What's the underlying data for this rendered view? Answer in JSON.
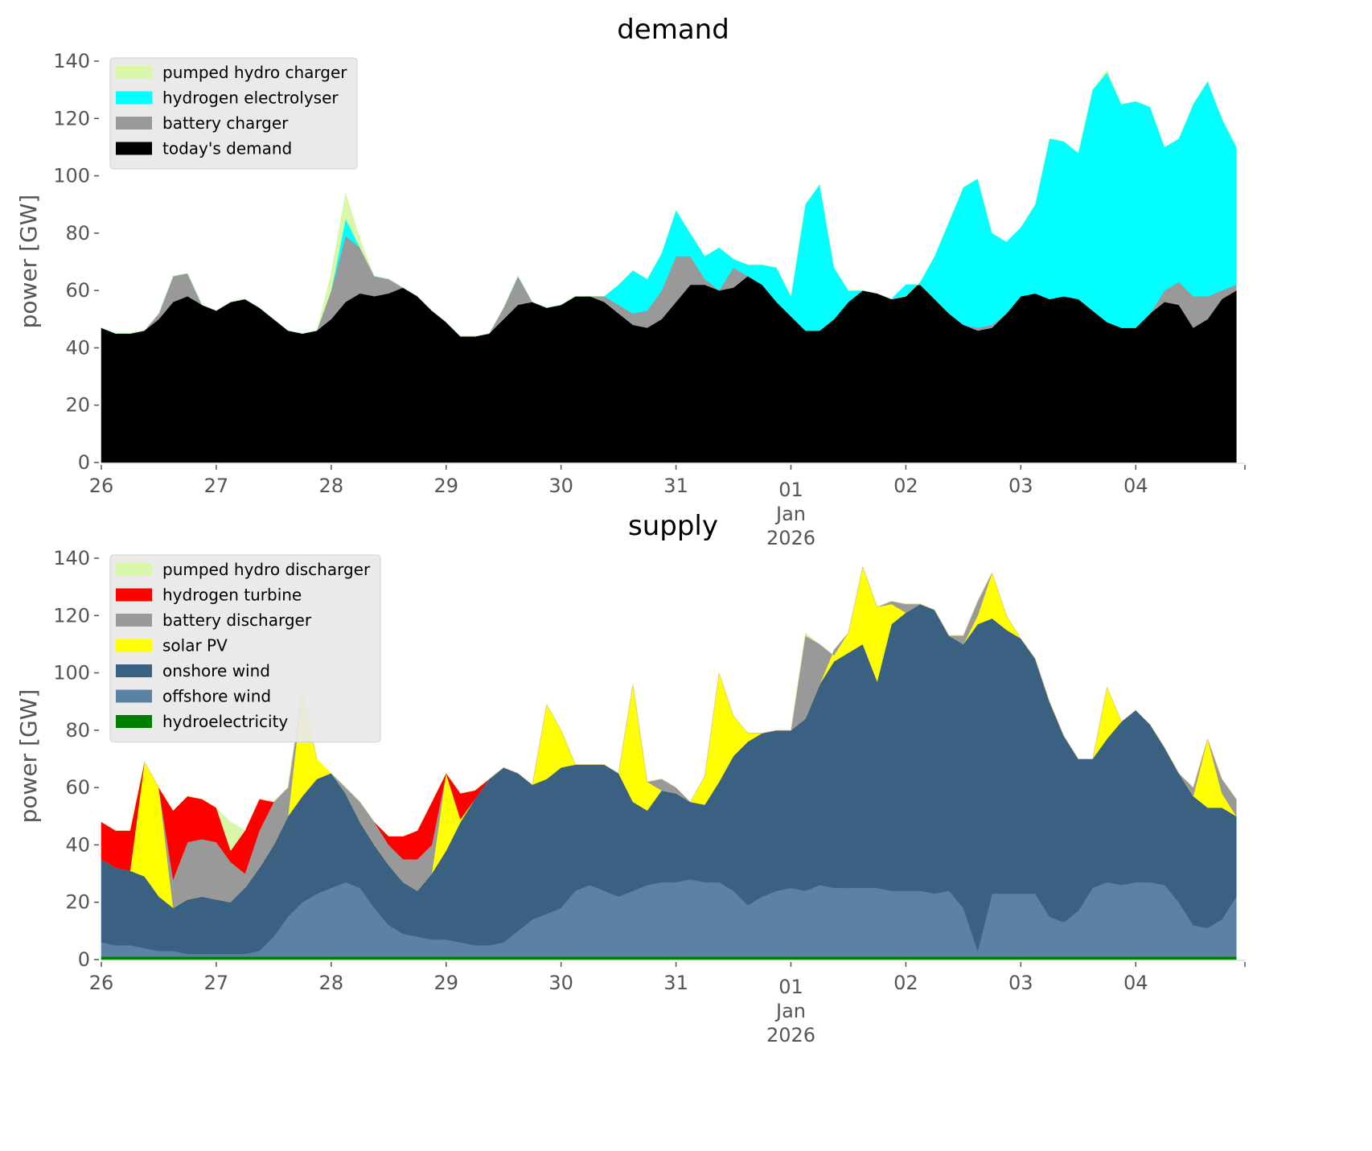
{
  "chart_data": [
    {
      "type": "area",
      "stacked": true,
      "title": "demand",
      "xlabel": "",
      "ylabel": "power [GW]",
      "ylim": [
        0,
        140
      ],
      "yticks": [
        0,
        20,
        40,
        60,
        80,
        100,
        120,
        140
      ],
      "xlim_days": [
        0,
        9.95
      ],
      "x_tick_labels": [
        "26",
        "27",
        "28",
        "29",
        "30",
        "31",
        "01\nJan\n2026",
        "02",
        "03",
        "04"
      ],
      "x_step_days": 0.125,
      "legend_position": "top-left",
      "series_order_bottom_to_top": [
        "today's demand",
        "battery charger",
        "hydrogen electrolyser",
        "pumped hydro charger"
      ],
      "legend": [
        "pumped hydro charger",
        "hydrogen electrolyser",
        "battery charger",
        "today's demand"
      ],
      "colors": {
        "pumped hydro charger": "#d9f7a8",
        "hydrogen electrolyser": "#00ffff",
        "battery charger": "#999999",
        "today's demand": "#000000"
      },
      "cumulative_tops": {
        "today's demand": [
          47,
          45,
          45,
          46,
          50,
          56,
          58,
          55,
          53,
          56,
          57,
          54,
          50,
          46,
          45,
          46,
          50,
          56,
          59,
          58,
          59,
          61,
          58,
          53,
          49,
          44,
          44,
          45,
          50,
          55,
          56,
          54,
          55,
          58,
          58,
          56,
          52,
          48,
          47,
          50,
          56,
          62,
          62,
          60,
          61,
          65,
          62,
          56,
          51,
          46,
          46,
          50,
          56,
          60,
          59,
          57,
          61,
          62,
          57,
          52,
          48,
          46,
          47,
          52,
          58,
          59,
          57,
          58,
          57,
          53,
          49,
          47,
          47,
          52,
          56,
          55,
          47,
          50,
          57,
          60
        ],
        "battery charger": [
          47,
          45,
          45,
          46,
          52,
          65,
          66,
          55,
          53,
          56,
          57,
          54,
          50,
          46,
          45,
          46,
          60,
          79,
          75,
          65,
          64,
          61,
          58,
          53,
          49,
          44,
          44,
          45,
          54,
          65,
          56,
          54,
          55,
          58,
          58,
          58,
          55,
          52,
          53,
          60,
          72,
          72,
          64,
          60,
          68,
          65,
          62,
          56,
          51,
          46,
          46,
          50,
          56,
          60,
          59,
          57,
          62,
          62,
          57,
          52,
          48,
          47,
          48,
          52,
          58,
          59,
          57,
          58,
          57,
          53,
          49,
          47,
          47,
          52,
          60,
          63,
          58,
          58,
          60,
          62
        ],
        "hydrogen electrolyser": [
          47,
          45,
          45,
          46,
          52,
          65,
          66,
          55,
          53,
          56,
          57,
          54,
          50,
          46,
          45,
          46,
          60,
          85,
          75,
          65,
          64,
          61,
          58,
          53,
          49,
          44,
          44,
          45,
          54,
          65,
          56,
          54,
          55,
          58,
          58,
          58,
          62,
          67,
          64,
          73,
          88,
          80,
          72,
          75,
          71,
          69,
          69,
          68,
          58,
          90,
          97,
          68,
          60,
          60,
          59,
          57,
          58,
          63,
          72,
          84,
          96,
          99,
          80,
          77,
          82,
          90,
          113,
          112,
          108,
          130,
          136,
          125,
          126,
          124,
          110,
          113,
          125,
          133,
          120,
          110
        ],
        "pumped hydro charger": [
          47,
          45,
          45,
          46,
          52,
          65,
          66,
          55,
          53,
          56,
          57,
          54,
          50,
          46,
          45,
          46,
          66,
          94,
          78,
          65,
          64,
          61,
          58,
          53,
          49,
          44,
          44,
          45,
          54,
          65,
          56,
          54,
          55,
          58,
          58,
          58,
          62,
          67,
          64,
          73,
          88,
          80,
          72,
          75,
          71,
          69,
          69,
          68,
          58,
          90,
          97,
          68,
          60,
          60,
          59,
          57,
          58,
          63,
          72,
          84,
          96,
          99,
          80,
          77,
          82,
          90,
          113,
          112,
          108,
          130,
          137,
          125,
          126,
          124,
          110,
          113,
          125,
          133,
          120,
          110
        ]
      }
    },
    {
      "type": "area",
      "stacked": true,
      "title": "supply",
      "xlabel": "",
      "ylabel": "power [GW]",
      "ylim": [
        0,
        140
      ],
      "yticks": [
        0,
        20,
        40,
        60,
        80,
        100,
        120,
        140
      ],
      "xlim_days": [
        0,
        9.95
      ],
      "x_tick_labels": [
        "26",
        "27",
        "28",
        "29",
        "30",
        "31",
        "01\nJan\n2026",
        "02",
        "03",
        "04"
      ],
      "x_step_days": 0.125,
      "legend_position": "top-left",
      "series_order_bottom_to_top": [
        "hydroelectricity",
        "offshore wind",
        "onshore wind",
        "solar PV",
        "battery discharger",
        "hydrogen turbine",
        "pumped hydro discharger"
      ],
      "legend": [
        "pumped hydro discharger",
        "hydrogen turbine",
        "battery discharger",
        "solar PV",
        "onshore wind",
        "offshore wind",
        "hydroelectricity"
      ],
      "colors": {
        "pumped hydro discharger": "#d9f7a8",
        "hydrogen turbine": "#ff0000",
        "battery discharger": "#999999",
        "solar PV": "#ffff00",
        "onshore wind": "#3b6182",
        "offshore wind": "#5b81a3",
        "hydroelectricity": "#008000"
      },
      "cumulative_tops": {
        "hydroelectricity": [
          1,
          1,
          1,
          1,
          1,
          1,
          1,
          1,
          1,
          1,
          1,
          1,
          1,
          1,
          1,
          1,
          1,
          1,
          1,
          1,
          1,
          1,
          1,
          1,
          1,
          1,
          1,
          1,
          1,
          1,
          1,
          1,
          1,
          1,
          1,
          1,
          1,
          1,
          1,
          1,
          1,
          1,
          1,
          1,
          1,
          1,
          1,
          1,
          1,
          1,
          1,
          1,
          1,
          1,
          1,
          1,
          1,
          1,
          1,
          1,
          1,
          1,
          1,
          1,
          1,
          1,
          1,
          1,
          1,
          1,
          1,
          1,
          1,
          1,
          1,
          1,
          1,
          1,
          1,
          1
        ],
        "offshore wind": [
          6,
          5,
          5,
          4,
          3,
          3,
          2,
          2,
          2,
          2,
          2,
          3,
          8,
          15,
          20,
          23,
          25,
          27,
          25,
          18,
          12,
          9,
          8,
          7,
          7,
          6,
          5,
          5,
          6,
          10,
          14,
          16,
          18,
          24,
          26,
          24,
          22,
          24,
          26,
          27,
          27,
          28,
          27,
          27,
          24,
          19,
          22,
          24,
          25,
          24,
          26,
          25,
          25,
          25,
          25,
          24,
          24,
          24,
          23,
          24,
          18,
          3,
          23,
          23,
          23,
          23,
          15,
          13,
          17,
          25,
          27,
          26,
          27,
          27,
          26,
          20,
          12,
          11,
          14,
          22
        ],
        "onshore wind": [
          35,
          32,
          31,
          29,
          22,
          18,
          21,
          22,
          21,
          20,
          25,
          32,
          40,
          50,
          57,
          63,
          65,
          58,
          48,
          40,
          33,
          27,
          24,
          30,
          38,
          48,
          56,
          63,
          67,
          65,
          61,
          63,
          67,
          68,
          68,
          68,
          65,
          55,
          52,
          59,
          58,
          55,
          54,
          62,
          71,
          76,
          79,
          80,
          80,
          84,
          96,
          104,
          107,
          110,
          97,
          117,
          121,
          124,
          122,
          113,
          110,
          117,
          119,
          115,
          112,
          105,
          90,
          78,
          70,
          70,
          77,
          83,
          87,
          82,
          74,
          65,
          57,
          53,
          53,
          50
        ],
        "solar PV": [
          35,
          32,
          31,
          69,
          60,
          18,
          21,
          22,
          21,
          20,
          25,
          32,
          40,
          50,
          94,
          70,
          65,
          58,
          48,
          40,
          33,
          27,
          24,
          30,
          65,
          49,
          56,
          63,
          67,
          65,
          61,
          89,
          80,
          68,
          68,
          68,
          65,
          96,
          62,
          59,
          58,
          55,
          64,
          100,
          85,
          79,
          79,
          80,
          80,
          84,
          96,
          108,
          114,
          137,
          123,
          124,
          121,
          124,
          122,
          113,
          110,
          120,
          135,
          120,
          112,
          105,
          90,
          78,
          70,
          70,
          95,
          83,
          87,
          82,
          74,
          65,
          57,
          77,
          58,
          50
        ],
        "battery discharger": [
          35,
          32,
          31,
          69,
          60,
          28,
          41,
          42,
          41,
          34,
          30,
          45,
          55,
          60,
          94,
          70,
          65,
          60,
          55,
          48,
          40,
          35,
          35,
          40,
          65,
          49,
          56,
          63,
          67,
          65,
          61,
          89,
          80,
          68,
          68,
          68,
          65,
          96,
          62,
          63,
          60,
          55,
          64,
          100,
          85,
          79,
          79,
          80,
          80,
          113,
          110,
          106,
          114,
          137,
          123,
          125,
          124,
          124,
          122,
          113,
          113,
          125,
          135,
          120,
          112,
          105,
          90,
          78,
          70,
          70,
          95,
          83,
          87,
          82,
          74,
          65,
          60,
          77,
          63,
          56
        ],
        "hydrogen turbine": [
          48,
          45,
          45,
          69,
          60,
          52,
          57,
          56,
          53,
          38,
          45,
          56,
          55,
          60,
          94,
          70,
          65,
          60,
          55,
          48,
          43,
          43,
          45,
          55,
          65,
          58,
          59,
          63,
          67,
          65,
          61,
          89,
          80,
          68,
          68,
          68,
          65,
          96,
          62,
          63,
          60,
          55,
          64,
          100,
          85,
          79,
          79,
          80,
          80,
          113,
          110,
          106,
          114,
          137,
          123,
          125,
          124,
          124,
          122,
          113,
          113,
          125,
          135,
          120,
          112,
          105,
          90,
          78,
          70,
          70,
          95,
          83,
          87,
          82,
          74,
          65,
          60,
          77,
          63,
          56
        ],
        "pumped hydro discharger": [
          48,
          45,
          45,
          69,
          60,
          52,
          57,
          56,
          53,
          48,
          45,
          56,
          55,
          60,
          94,
          70,
          65,
          60,
          55,
          48,
          43,
          43,
          45,
          55,
          65,
          58,
          59,
          63,
          67,
          65,
          61,
          89,
          80,
          68,
          68,
          68,
          65,
          96,
          62,
          63,
          60,
          55,
          64,
          100,
          85,
          79,
          79,
          80,
          80,
          114,
          110,
          106,
          114,
          137,
          123,
          125,
          124,
          124,
          122,
          113,
          113,
          125,
          135,
          120,
          112,
          105,
          90,
          78,
          70,
          70,
          95,
          83,
          87,
          82,
          74,
          65,
          60,
          77,
          63,
          56
        ]
      }
    }
  ]
}
